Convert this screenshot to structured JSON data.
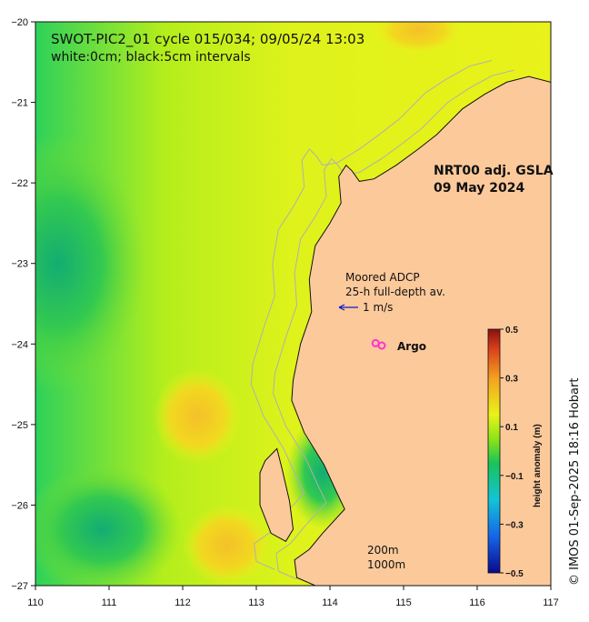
{
  "title": "SWOT-PIC2_01 cycle 015/034; 09/05/24 13:03",
  "subtitle": "white:0cm; black:5cm intervals",
  "product_label": [
    "NRT00 adj. GSLA",
    "09 May 2024"
  ],
  "adcp_label": [
    "Moored ADCP",
    "25-h full-depth av."
  ],
  "vector_scale_label": "1 m/s",
  "argo_label": "Argo",
  "depth_labels": [
    "200m",
    "1000m"
  ],
  "credit": "© IMOS 01-Sep-2025 18:16 Hobart",
  "colors": {
    "land": "#fcc99b",
    "ocean_low": "#1ec06a",
    "ocean_mid": "#b9f21a",
    "ocean_high": "#f4c82a",
    "argo_marker": "#ff33cc",
    "vector": "#1414c8"
  },
  "chart_data": {
    "type": "heatmap",
    "xlim": [
      110,
      117
    ],
    "ylim": [
      -27,
      -20
    ],
    "x_ticks": [
      110,
      111,
      112,
      113,
      114,
      115,
      116,
      117
    ],
    "y_ticks": [
      -20,
      -21,
      -22,
      -23,
      -24,
      -25,
      -26,
      -27
    ],
    "x_tick_labels": [
      "110",
      "111",
      "112",
      "113",
      "114",
      "115",
      "116",
      "117"
    ],
    "y_tick_labels": [
      "−20",
      "−21",
      "−22",
      "−23",
      "−24",
      "−25",
      "−26",
      "−27"
    ],
    "colorbar": {
      "label": "height anomaly (m)",
      "min": -0.5,
      "max": 0.5,
      "ticks": [
        0.5,
        0.3,
        0.1,
        -0.1,
        -0.3,
        -0.5
      ],
      "tick_labels": [
        "0.5",
        "0.3",
        "0.1",
        "−0.1",
        "−0.3",
        "−0.5"
      ]
    },
    "coastline_lonlat": [
      [
        117,
        -20.75
      ],
      [
        116.7,
        -20.68
      ],
      [
        116.4,
        -20.75
      ],
      [
        116.1,
        -20.9
      ],
      [
        115.8,
        -21.08
      ],
      [
        115.45,
        -21.4
      ],
      [
        115.2,
        -21.58
      ],
      [
        114.9,
        -21.78
      ],
      [
        114.6,
        -21.95
      ],
      [
        114.4,
        -21.98
      ],
      [
        114.3,
        -21.85
      ],
      [
        114.22,
        -21.78
      ],
      [
        114.12,
        -21.92
      ],
      [
        114.15,
        -22.25
      ],
      [
        114.0,
        -22.5
      ],
      [
        113.8,
        -22.78
      ],
      [
        113.72,
        -23.2
      ],
      [
        113.75,
        -23.6
      ],
      [
        113.6,
        -24.0
      ],
      [
        113.5,
        -24.45
      ],
      [
        113.48,
        -24.7
      ],
      [
        113.65,
        -25.1
      ],
      [
        113.92,
        -25.5
      ],
      [
        114.08,
        -25.82
      ],
      [
        114.2,
        -26.05
      ],
      [
        113.9,
        -26.35
      ],
      [
        113.72,
        -26.55
      ],
      [
        113.52,
        -26.68
      ],
      [
        113.55,
        -26.9
      ],
      [
        113.8,
        -27.0
      ],
      [
        117,
        -27
      ]
    ],
    "peninsula_lonlat": [
      [
        113.05,
        -25.6
      ],
      [
        113.12,
        -25.45
      ],
      [
        113.28,
        -25.3
      ],
      [
        113.35,
        -25.55
      ],
      [
        113.45,
        -25.95
      ],
      [
        113.5,
        -26.3
      ],
      [
        113.4,
        -26.45
      ],
      [
        113.2,
        -26.35
      ],
      [
        113.05,
        -26.0
      ]
    ],
    "anomaly_fields": [
      {
        "level": "low",
        "center": [
          110.3,
          -23.0
        ],
        "radius": [
          1.2,
          1.6
        ]
      },
      {
        "level": "low",
        "center": [
          110.9,
          -26.3
        ],
        "radius": [
          1.1,
          0.8
        ]
      },
      {
        "level": "low",
        "center": [
          113.9,
          -25.6
        ],
        "radius": [
          0.5,
          0.7
        ]
      },
      {
        "level": "high",
        "center": [
          112.2,
          -24.9
        ],
        "radius": [
          0.6,
          0.6
        ]
      },
      {
        "level": "high",
        "center": [
          112.6,
          -26.5
        ],
        "radius": [
          0.6,
          0.5
        ]
      },
      {
        "level": "high",
        "center": [
          115.2,
          -20.1
        ],
        "radius": [
          0.6,
          0.3
        ]
      }
    ],
    "argo_floats_lonlat": [
      [
        114.62,
        -23.99
      ]
    ],
    "adcp_vector": {
      "start_lonlat": [
        114.08,
        -23.52
      ],
      "u": -0.3,
      "v": 0.0
    }
  }
}
